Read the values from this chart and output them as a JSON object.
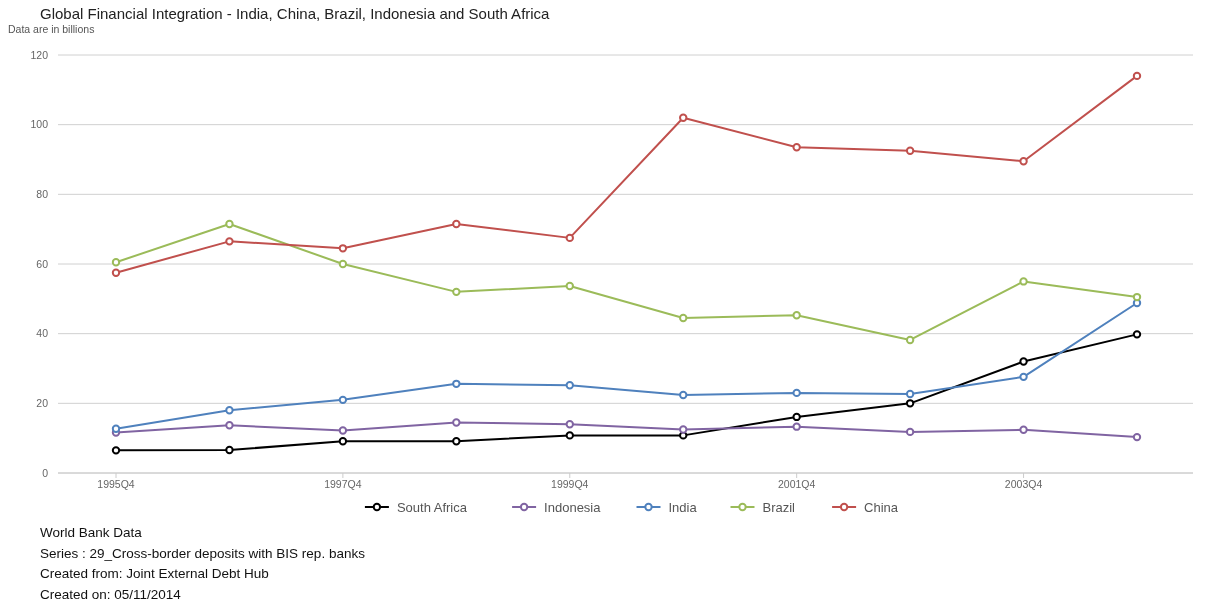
{
  "chart_data": {
    "type": "line",
    "title": "Global Financial Integration - India, China, Brazil, Indonesia and South Africa",
    "subtitle": "Data are in  billions",
    "categories": [
      "1995Q4",
      null,
      "1997Q4",
      null,
      "1999Q4",
      null,
      "2001Q4",
      null,
      "2003Q4",
      null
    ],
    "series": [
      {
        "name": "South Africa",
        "color": "#000000",
        "values": [
          6.5,
          6.6,
          9.1,
          9.1,
          10.8,
          10.8,
          16.1,
          20,
          32,
          39.8
        ]
      },
      {
        "name": "Indonesia",
        "color": "#8064a2",
        "values": [
          11.6,
          13.7,
          12.2,
          14.5,
          14,
          12.5,
          13.3,
          11.8,
          12.4,
          10.3
        ]
      },
      {
        "name": "India",
        "color": "#4f81bd",
        "values": [
          12.7,
          18,
          21,
          25.6,
          25.2,
          22.4,
          23,
          22.7,
          27.6,
          48.8
        ]
      },
      {
        "name": "Brazil",
        "color": "#9bbb59",
        "values": [
          60.5,
          71.5,
          60,
          52,
          53.7,
          44.5,
          45.3,
          38.2,
          55,
          50.5
        ]
      },
      {
        "name": "China",
        "color": "#c0504d",
        "values": [
          57.5,
          66.5,
          64.5,
          71.5,
          67.5,
          102,
          93.5,
          92.5,
          89.5,
          114
        ]
      }
    ],
    "ylim": [
      0,
      120
    ],
    "yticks": [
      0,
      20,
      40,
      60,
      80,
      100,
      120
    ],
    "grid": "y",
    "legend": "bottom",
    "marker": "circle",
    "line_style": "solid",
    "annotations": [
      "World Bank Data",
      "Series : 29_Cross-border deposits with BIS rep. banks",
      "Created from: Joint External Debt Hub",
      "Created on: 05/11/2014"
    ]
  }
}
